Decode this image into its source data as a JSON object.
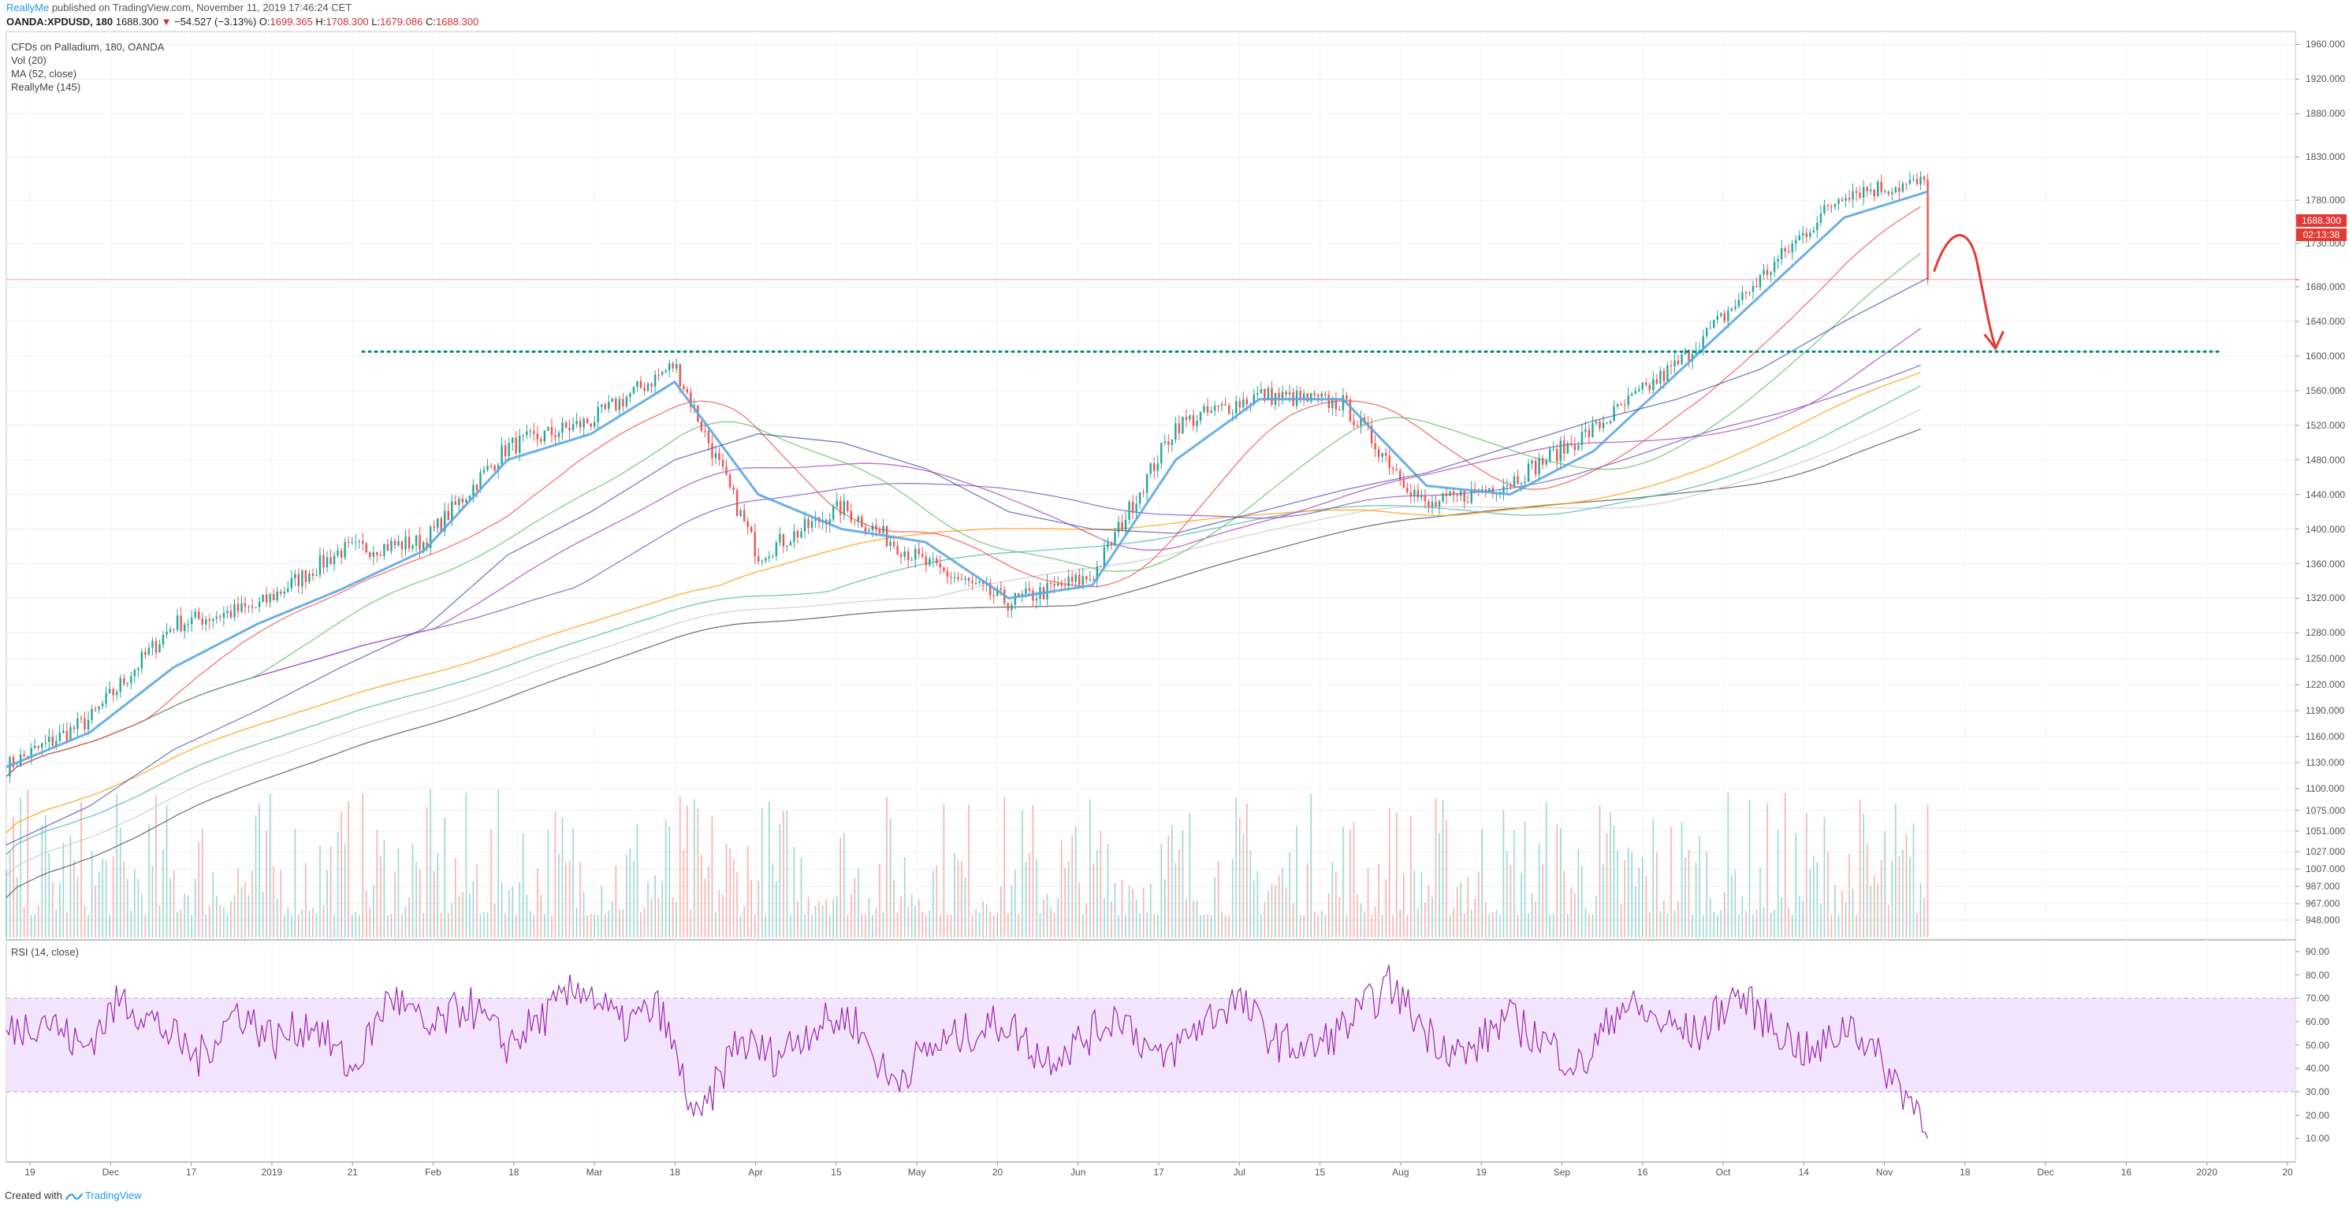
{
  "header": {
    "author": "ReallyMe",
    "published": "published on TradingView.com, November 11, 2019 17:46:24 CET",
    "symbol": "OANDA:XPDUSD, 180",
    "last": "1688.300",
    "change_arrow": "▼",
    "change": "−54.527 (−3.13%)",
    "ohlc": {
      "o_label": "O:",
      "o": "1699.365",
      "h_label": "H:",
      "h": "1708.300",
      "l_label": "L:",
      "l": "1679.086",
      "c_label": "C:",
      "c": "1688.300"
    }
  },
  "legend": {
    "title": "CFDs on Palladium, 180, OANDA",
    "vol": "Vol (20)",
    "ma": "MA (52, close)",
    "custom": "ReallyMe (145)",
    "rsi": "RSI (14, close)"
  },
  "price_badge": {
    "price": "1688.300",
    "countdown": "02:13:38"
  },
  "footer": {
    "created_with": "Created with",
    "brand": "TradingView"
  },
  "colors": {
    "up": "#26a69a",
    "down": "#ef5350",
    "ma52": "#5ba7e3",
    "rsi": "#9c27b0",
    "rsi_band": "#f3e5fd",
    "resistance": "#00897b",
    "arrow": "#e53935"
  },
  "chart_data": [
    {
      "type": "line",
      "title": "CFDs on Palladium, 180, OANDA",
      "ylim": [
        928,
        1975
      ],
      "y_ticks": [
        "1960.000",
        "1920.000",
        "1880.000",
        "1830.000",
        "1780.000",
        "1730.000",
        "1680.000",
        "1640.000",
        "1600.000",
        "1560.000",
        "1520.000",
        "1480.000",
        "1440.000",
        "1400.000",
        "1360.000",
        "1320.000",
        "1280.000",
        "1250.000",
        "1220.000",
        "1190.000",
        "1160.000",
        "1130.000",
        "1100.000",
        "1075.000",
        "1051.000",
        "1027.000",
        "1007.000",
        "987.000",
        "967.000",
        "948.000"
      ],
      "x_ticks": [
        "19",
        "Dec",
        "17",
        "2019",
        "21",
        "Feb",
        "18",
        "Mar",
        "18",
        "Apr",
        "15",
        "May",
        "20",
        "Jun",
        "17",
        "Jul",
        "15",
        "Aug",
        "19",
        "Sep",
        "16",
        "Oct",
        "14",
        "Nov",
        "18",
        "Dec",
        "16",
        "2020",
        "20"
      ],
      "price_path": {
        "dates": [
          "19",
          "Dec",
          "17",
          "2019",
          "21",
          "Feb",
          "18",
          "Mar",
          "18",
          "Apr",
          "15",
          "May",
          "20",
          "Jun",
          "17",
          "Jul",
          "15",
          "Aug",
          "19",
          "Sep",
          "16",
          "Oct",
          "14",
          "Nov"
        ],
        "close": [
          1125,
          1180,
          1290,
          1310,
          1375,
          1385,
          1495,
          1525,
          1590,
          1370,
          1425,
          1360,
          1315,
          1345,
          1520,
          1555,
          1545,
          1425,
          1455,
          1515,
          1590,
          1690,
          1790,
          1800
        ]
      },
      "last_price": 1688.3,
      "resistance_level": 1605,
      "series": [
        {
          "name": "MA (52, close)",
          "values": [
            1125,
            1165,
            1240,
            1290,
            1330,
            1375,
            1480,
            1510,
            1570,
            1440,
            1400,
            1385,
            1320,
            1335,
            1480,
            1550,
            1550,
            1450,
            1440,
            1490,
            1580,
            1670,
            1760,
            1790
          ]
        },
        {
          "name": "ReallyMe (145)",
          "values": [
            1035,
            1080,
            1145,
            1190,
            1240,
            1285,
            1370,
            1420,
            1480,
            1510,
            1500,
            1470,
            1420,
            1400,
            1395,
            1420,
            1445,
            1465,
            1495,
            1525,
            1550,
            1585,
            1640,
            1690
          ]
        }
      ]
    },
    {
      "type": "bar",
      "title": "Vol (20)",
      "note": "volume histogram along the bottom of the price pane"
    },
    {
      "type": "line",
      "title": "RSI (14, close)",
      "ylim": [
        0,
        95
      ],
      "y_ticks": [
        "90.00",
        "80.00",
        "70.00",
        "60.00",
        "50.00",
        "40.00",
        "30.00",
        "20.00",
        "10.00"
      ],
      "band": [
        30,
        70
      ],
      "values": [
        55,
        62,
        48,
        70,
        58,
        44,
        65,
        52,
        60,
        38,
        72,
        55,
        68,
        50,
        62,
        76,
        58,
        66,
        15,
        52,
        45,
        58,
        62,
        34,
        48,
        55,
        60,
        44,
        52,
        64,
        42,
        58,
        70,
        52,
        48,
        60,
        76,
        55,
        45,
        62,
        52,
        40,
        68,
        60,
        54,
        72,
        58,
        45,
        60,
        38,
        18
      ]
    }
  ]
}
